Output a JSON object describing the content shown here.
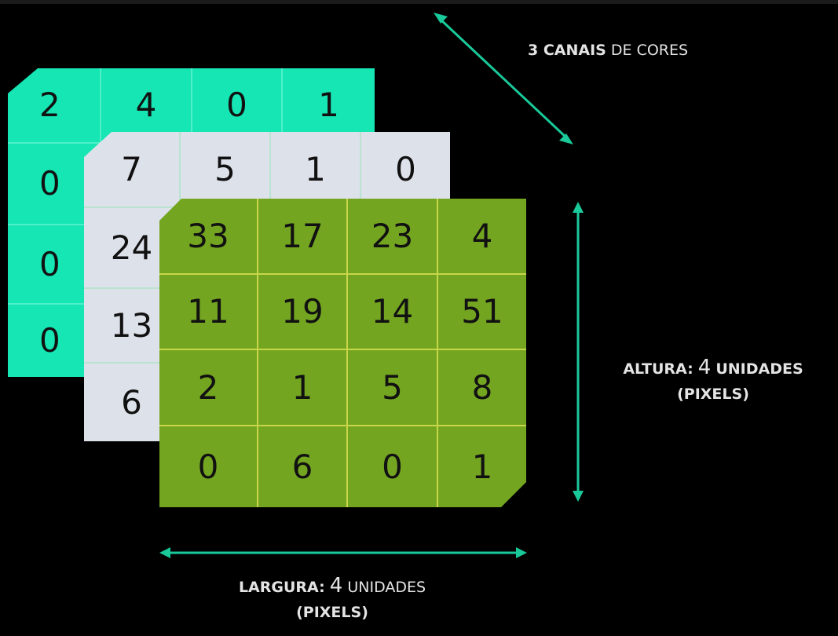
{
  "layers": {
    "red": [
      "2",
      "4",
      "0",
      "1",
      "0",
      "",
      "",
      "",
      "0",
      "",
      "",
      "",
      "0",
      "",
      "",
      ""
    ],
    "green": [
      "7",
      "5",
      "1",
      "0",
      "24",
      "",
      "",
      "",
      "13",
      "",
      "",
      "",
      "6",
      "",
      "",
      ""
    ],
    "blue": [
      "33",
      "17",
      "23",
      "4",
      "11",
      "19",
      "14",
      "51",
      "2",
      "1",
      "5",
      "8",
      "0",
      "6",
      "0",
      "1"
    ]
  },
  "colors": {
    "background": "#000000",
    "red_layer": "#16e5b4",
    "green_layer": "#dde1ea",
    "blue_layer": "#74a521",
    "arrow": "#19c99a",
    "text": "#e4e4e4"
  },
  "labels": {
    "channels": {
      "bold": "3 CANAIS",
      "light": "DE CORES"
    },
    "height": {
      "bold": "ALTURA:",
      "number": "4",
      "unit": "UNIDADES",
      "line2": "(PIXELS)"
    },
    "width": {
      "bold": "LARGURA:",
      "number": "4",
      "unit": "UNIDADES",
      "line2": "(PIXELS)"
    }
  }
}
